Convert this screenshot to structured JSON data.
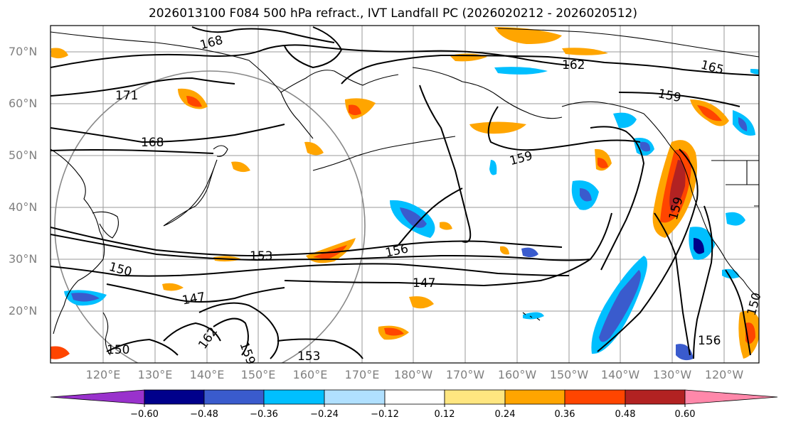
{
  "title": "2026013100 F084 500 hPa refract., IVT Landfall PC (2026020212 - 2026020512)",
  "lat_labels": [
    "70°N",
    "60°N",
    "50°N",
    "40°N",
    "30°N",
    "20°N"
  ],
  "lon_labels": [
    "120°E",
    "130°E",
    "140°E",
    "150°E",
    "160°E",
    "170°E",
    "180°W",
    "170°W",
    "160°W",
    "150°W",
    "140°W",
    "130°W",
    "120°W"
  ],
  "contour_labels": [
    "168",
    "162",
    "165",
    "159",
    "171",
    "168",
    "159",
    "159",
    "156",
    "153",
    "150",
    "147",
    "147",
    "162",
    "159",
    "153",
    "156",
    "150",
    "150"
  ],
  "colorbar": {
    "tick_labels": [
      "−0.60",
      "−0.48",
      "−0.36",
      "−0.24",
      "−0.12",
      "0.12",
      "0.24",
      "0.36",
      "0.48",
      "0.60"
    ],
    "colors": [
      "#9932cc",
      "#00008b",
      "#3a5bcd",
      "#00bfff",
      "#b0e0ff",
      "#ffffff",
      "#ffe680",
      "#ffa500",
      "#ff4500",
      "#b22222",
      "#ff88aa"
    ]
  },
  "colors": {
    "contour": "#000000",
    "grid": "#9a9a9a",
    "coast": "#000000",
    "axis_label": "#808080"
  }
}
